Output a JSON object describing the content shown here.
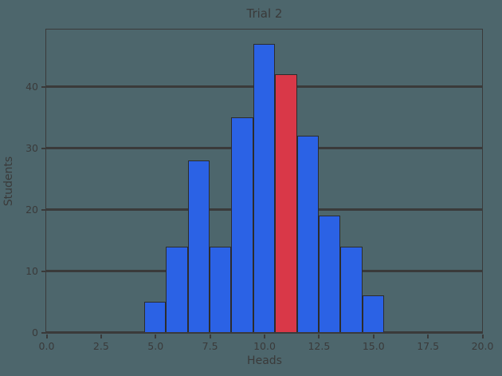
{
  "chart_data": {
    "type": "bar",
    "title": "Trial 2",
    "xlabel": "Heads",
    "ylabel": "Students",
    "bin_centers": [
      5,
      6,
      7,
      8,
      9,
      10,
      11,
      12,
      13,
      14,
      15
    ],
    "values": [
      5,
      14,
      28,
      14,
      35,
      47,
      42,
      32,
      19,
      14,
      6
    ],
    "bar_width": 1,
    "highlight_bin_center": 11,
    "highlight_index": 6,
    "xlim": [
      0,
      20
    ],
    "ylim": [
      0,
      49.35
    ],
    "xtick_values": [
      0,
      2.5,
      5,
      7.5,
      10,
      12.5,
      15,
      17.5,
      20
    ],
    "xtick_labels": [
      "0.0",
      "2.5",
      "5.0",
      "7.5",
      "10.0",
      "12.5",
      "15.0",
      "17.5",
      "20.0"
    ],
    "ytick_values": [
      0,
      10,
      20,
      30,
      40
    ],
    "ytick_labels": [
      "0",
      "10",
      "20",
      "30",
      "40"
    ],
    "grid": "horizontal-only",
    "legend": "none",
    "colors": {
      "background": "#4d666c",
      "bar": "#2b62e5",
      "highlight": "#d93848",
      "bar_edge": "#2c2c2c",
      "line": "#3a3a3a",
      "text": "#3a3a3a"
    }
  }
}
